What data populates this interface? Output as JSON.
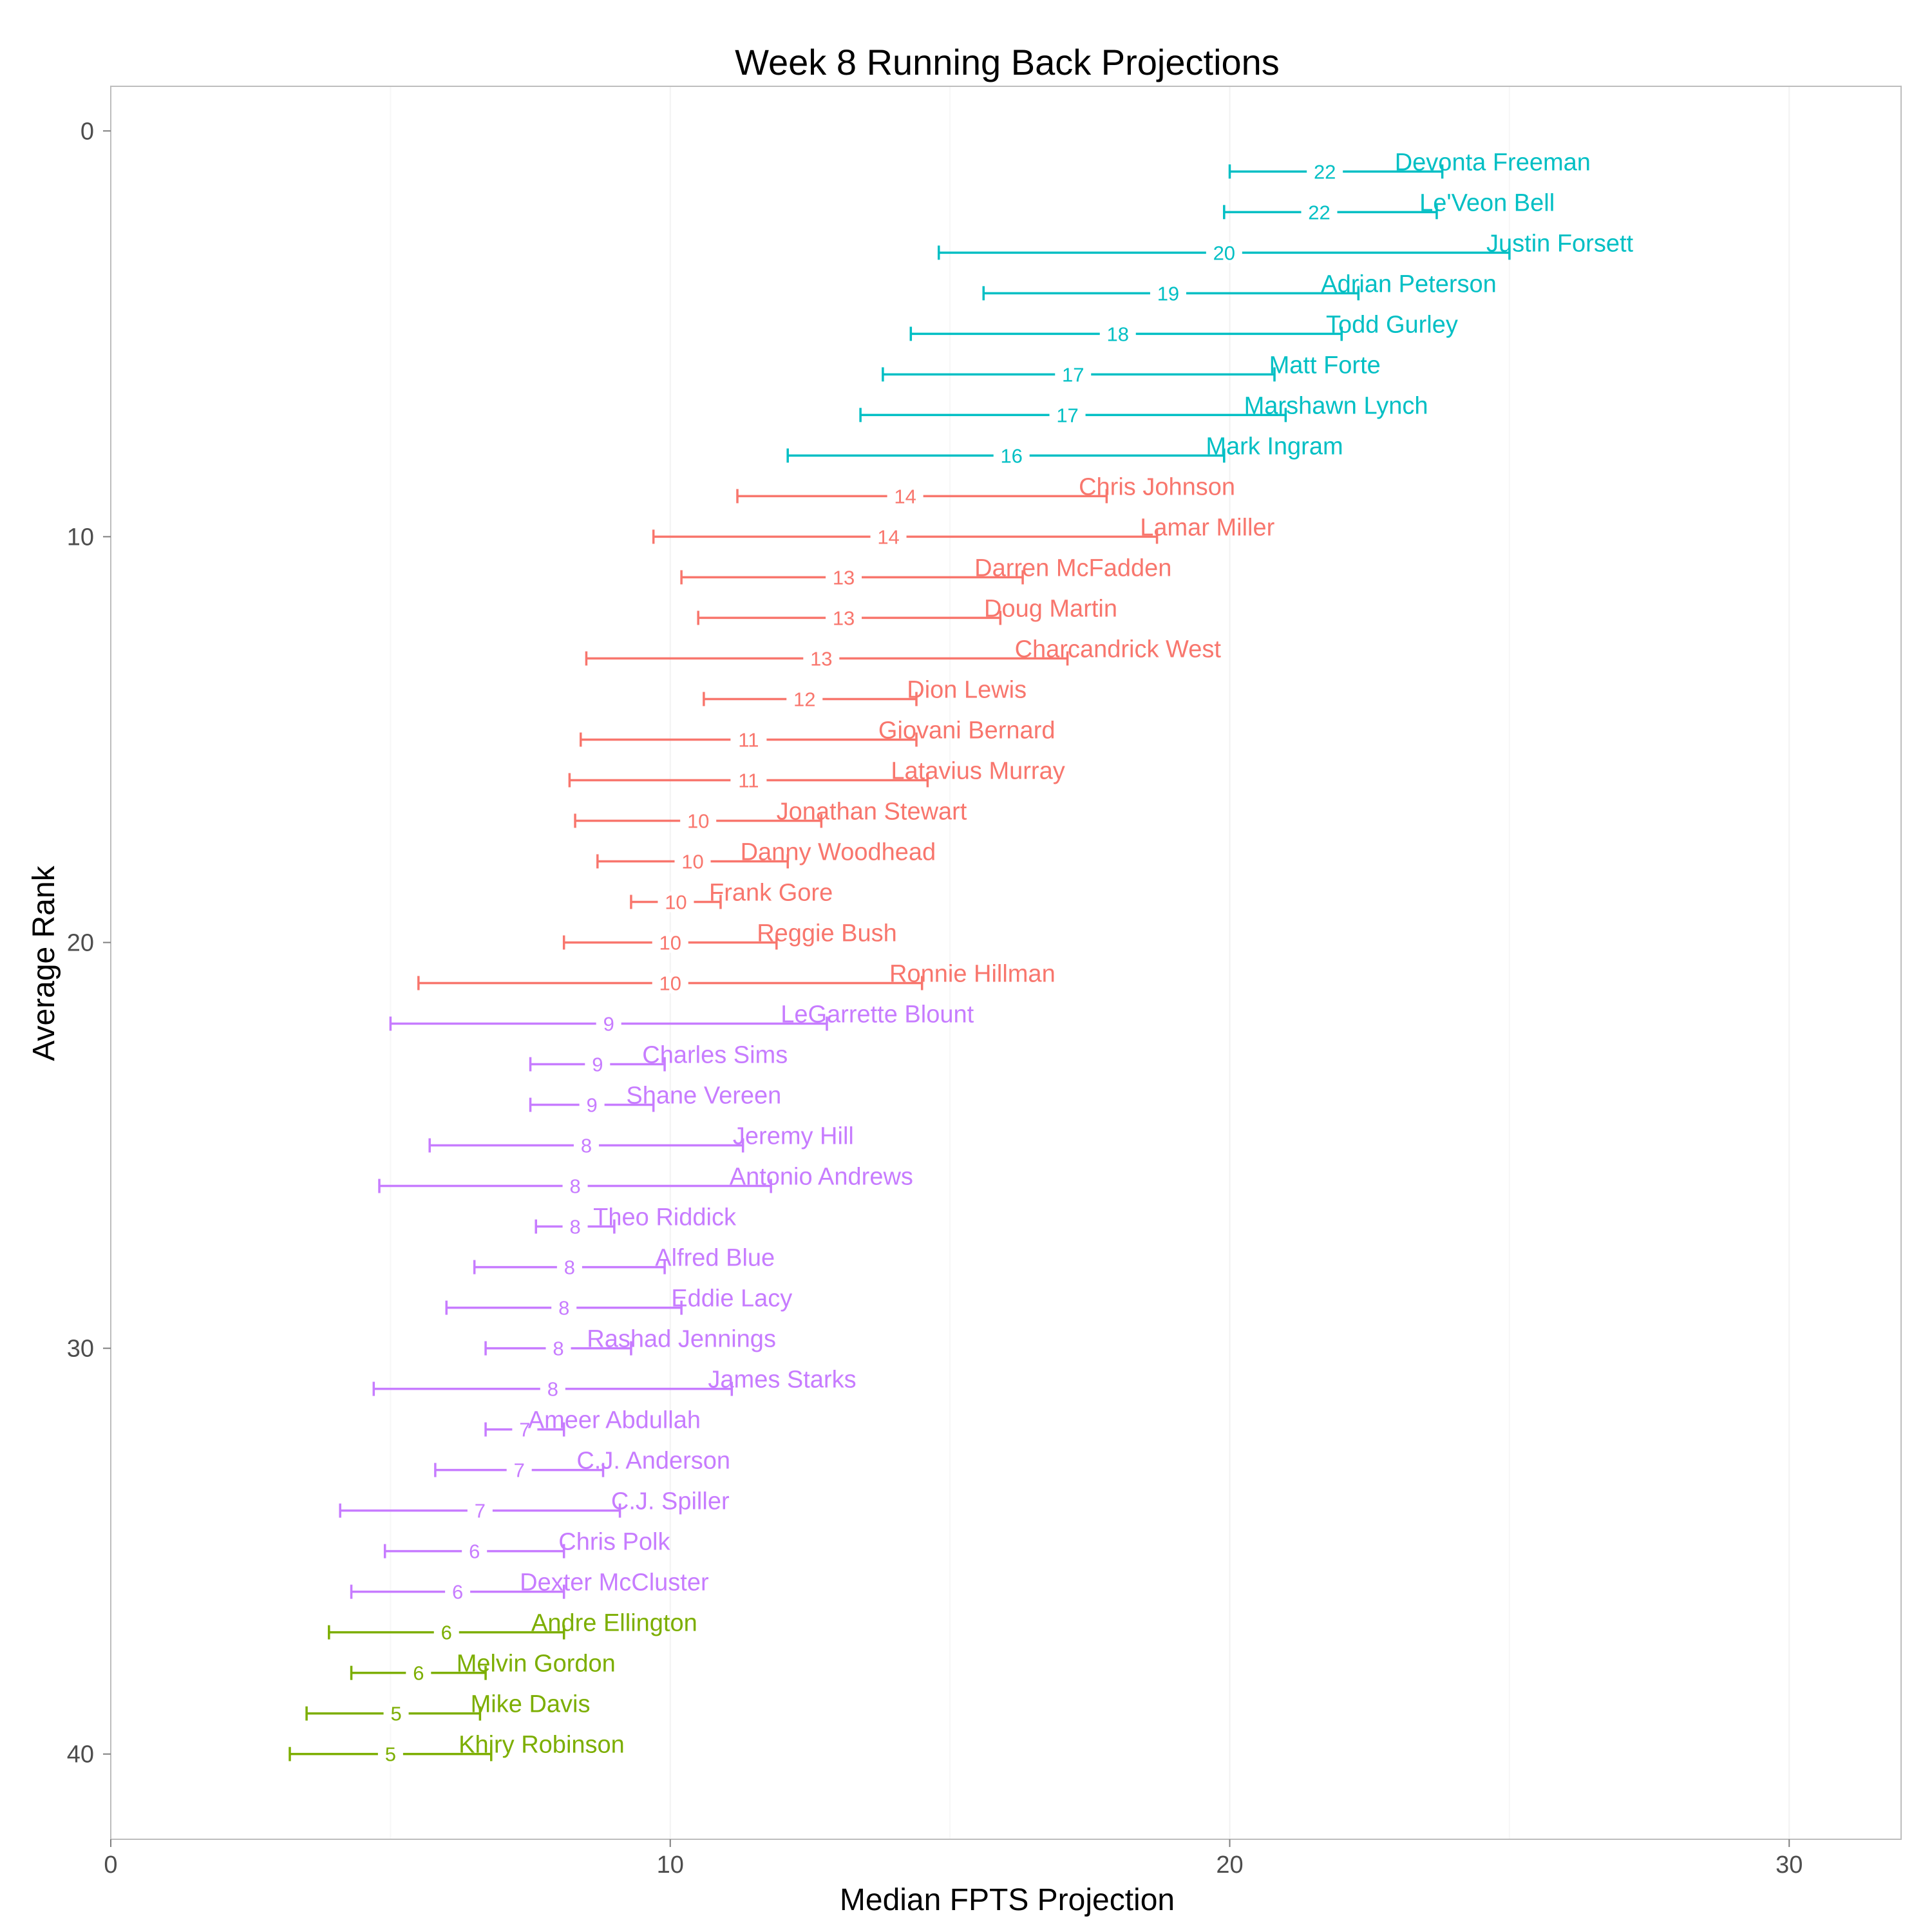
{
  "chart_data": {
    "type": "errorbar",
    "title": "Week 8 Running Back Projections",
    "xlabel": "Median FPTS Projection",
    "ylabel": "Average Rank",
    "xlim": [
      0,
      32
    ],
    "ylim": [
      -1.1,
      42.1
    ],
    "y_reversed": true,
    "x_ticks": [
      0,
      10,
      20,
      30
    ],
    "y_ticks": [
      0,
      10,
      20,
      30,
      40
    ],
    "grid": true,
    "legend": "none",
    "tier_colors": {
      "tier1": "#00BFC4",
      "tier2": "#F8766D",
      "tier3": "#C77CFF",
      "tier4": "#7CAE00"
    },
    "players": [
      {
        "name": "Devonta Freeman",
        "rank": 1,
        "median": 21.7,
        "median_label": "22",
        "low": 20.0,
        "high": 23.8,
        "tier": "tier1"
      },
      {
        "name": "Le'Veon Bell",
        "rank": 2,
        "median": 21.6,
        "median_label": "22",
        "low": 19.9,
        "high": 23.7,
        "tier": "tier1"
      },
      {
        "name": "Justin Forsett",
        "rank": 3,
        "median": 19.9,
        "median_label": "20",
        "low": 14.8,
        "high": 25.0,
        "tier": "tier1"
      },
      {
        "name": "Adrian Peterson",
        "rank": 4,
        "median": 18.9,
        "median_label": "19",
        "low": 15.6,
        "high": 22.3,
        "tier": "tier1"
      },
      {
        "name": "Todd Gurley",
        "rank": 5,
        "median": 18.0,
        "median_label": "18",
        "low": 14.3,
        "high": 22.0,
        "tier": "tier1"
      },
      {
        "name": "Matt Forte",
        "rank": 6,
        "median": 17.2,
        "median_label": "17",
        "low": 13.8,
        "high": 20.8,
        "tier": "tier1"
      },
      {
        "name": "Marshawn Lynch",
        "rank": 7,
        "median": 17.1,
        "median_label": "17",
        "low": 13.4,
        "high": 21.0,
        "tier": "tier1"
      },
      {
        "name": "Mark Ingram",
        "rank": 8,
        "median": 16.1,
        "median_label": "16",
        "low": 12.1,
        "high": 19.9,
        "tier": "tier1"
      },
      {
        "name": "Chris Johnson",
        "rank": 9,
        "median": 14.2,
        "median_label": "14",
        "low": 11.2,
        "high": 17.8,
        "tier": "tier2"
      },
      {
        "name": "Lamar Miller",
        "rank": 10,
        "median": 13.9,
        "median_label": "14",
        "low": 9.7,
        "high": 18.7,
        "tier": "tier2"
      },
      {
        "name": "Darren McFadden",
        "rank": 11,
        "median": 13.1,
        "median_label": "13",
        "low": 10.2,
        "high": 16.3,
        "tier": "tier2"
      },
      {
        "name": "Doug Martin",
        "rank": 12,
        "median": 13.1,
        "median_label": "13",
        "low": 10.5,
        "high": 15.9,
        "tier": "tier2"
      },
      {
        "name": "Charcandrick West",
        "rank": 13,
        "median": 12.7,
        "median_label": "13",
        "low": 8.5,
        "high": 17.1,
        "tier": "tier2"
      },
      {
        "name": "Dion Lewis",
        "rank": 14,
        "median": 12.4,
        "median_label": "12",
        "low": 10.6,
        "high": 14.4,
        "tier": "tier2"
      },
      {
        "name": "Giovani Bernard",
        "rank": 15,
        "median": 11.4,
        "median_label": "11",
        "low": 8.4,
        "high": 14.4,
        "tier": "tier2"
      },
      {
        "name": "Latavius Murray",
        "rank": 16,
        "median": 11.4,
        "median_label": "11",
        "low": 8.2,
        "high": 14.6,
        "tier": "tier2"
      },
      {
        "name": "Jonathan Stewart",
        "rank": 17,
        "median": 10.5,
        "median_label": "10",
        "low": 8.3,
        "high": 12.7,
        "tier": "tier2"
      },
      {
        "name": "Danny Woodhead",
        "rank": 18,
        "median": 10.4,
        "median_label": "10",
        "low": 8.7,
        "high": 12.1,
        "tier": "tier2"
      },
      {
        "name": "Frank Gore",
        "rank": 19,
        "median": 10.1,
        "median_label": "10",
        "low": 9.3,
        "high": 10.9,
        "tier": "tier2"
      },
      {
        "name": "Reggie Bush",
        "rank": 20,
        "median": 10.0,
        "median_label": "10",
        "low": 8.1,
        "high": 11.9,
        "tier": "tier2"
      },
      {
        "name": "Ronnie Hillman",
        "rank": 21,
        "median": 10.0,
        "median_label": "10",
        "low": 5.5,
        "high": 14.5,
        "tier": "tier2"
      },
      {
        "name": "LeGarrette Blount",
        "rank": 22,
        "median": 8.9,
        "median_label": "9",
        "low": 5.0,
        "high": 12.8,
        "tier": "tier3"
      },
      {
        "name": "Charles Sims",
        "rank": 23,
        "median": 8.7,
        "median_label": "9",
        "low": 7.5,
        "high": 9.9,
        "tier": "tier3"
      },
      {
        "name": "Shane Vereen",
        "rank": 24,
        "median": 8.6,
        "median_label": "9",
        "low": 7.5,
        "high": 9.7,
        "tier": "tier3"
      },
      {
        "name": "Jeremy Hill",
        "rank": 25,
        "median": 8.5,
        "median_label": "8",
        "low": 5.7,
        "high": 11.3,
        "tier": "tier3"
      },
      {
        "name": "Antonio Andrews",
        "rank": 26,
        "median": 8.3,
        "median_label": "8",
        "low": 4.8,
        "high": 11.8,
        "tier": "tier3"
      },
      {
        "name": "Theo Riddick",
        "rank": 27,
        "median": 8.3,
        "median_label": "8",
        "low": 7.6,
        "high": 9.0,
        "tier": "tier3"
      },
      {
        "name": "Alfred Blue",
        "rank": 28,
        "median": 8.2,
        "median_label": "8",
        "low": 6.5,
        "high": 9.9,
        "tier": "tier3"
      },
      {
        "name": "Eddie Lacy",
        "rank": 29,
        "median": 8.1,
        "median_label": "8",
        "low": 6.0,
        "high": 10.2,
        "tier": "tier3"
      },
      {
        "name": "Rashad Jennings",
        "rank": 30,
        "median": 8.0,
        "median_label": "8",
        "low": 6.7,
        "high": 9.3,
        "tier": "tier3"
      },
      {
        "name": "James Starks",
        "rank": 31,
        "median": 7.9,
        "median_label": "8",
        "low": 4.7,
        "high": 11.1,
        "tier": "tier3"
      },
      {
        "name": "Ameer Abdullah",
        "rank": 32,
        "median": 7.4,
        "median_label": "7",
        "low": 6.7,
        "high": 8.1,
        "tier": "tier3"
      },
      {
        "name": "C.J. Anderson",
        "rank": 33,
        "median": 7.3,
        "median_label": "7",
        "low": 5.8,
        "high": 8.8,
        "tier": "tier3"
      },
      {
        "name": "C.J. Spiller",
        "rank": 34,
        "median": 6.6,
        "median_label": "7",
        "low": 4.1,
        "high": 9.1,
        "tier": "tier3"
      },
      {
        "name": "Chris Polk",
        "rank": 35,
        "median": 6.5,
        "median_label": "6",
        "low": 4.9,
        "high": 8.1,
        "tier": "tier3"
      },
      {
        "name": "Dexter McCluster",
        "rank": 36,
        "median": 6.2,
        "median_label": "6",
        "low": 4.3,
        "high": 8.1,
        "tier": "tier3"
      },
      {
        "name": "Andre Ellington",
        "rank": 37,
        "median": 6.0,
        "median_label": "6",
        "low": 3.9,
        "high": 8.1,
        "tier": "tier4"
      },
      {
        "name": "Melvin Gordon",
        "rank": 38,
        "median": 5.5,
        "median_label": "6",
        "low": 4.3,
        "high": 6.7,
        "tier": "tier4"
      },
      {
        "name": "Mike Davis",
        "rank": 39,
        "median": 5.1,
        "median_label": "5",
        "low": 3.5,
        "high": 6.6,
        "tier": "tier4"
      },
      {
        "name": "Khiry Robinson",
        "rank": 40,
        "median": 5.0,
        "median_label": "5",
        "low": 3.2,
        "high": 6.8,
        "tier": "tier4"
      }
    ]
  }
}
